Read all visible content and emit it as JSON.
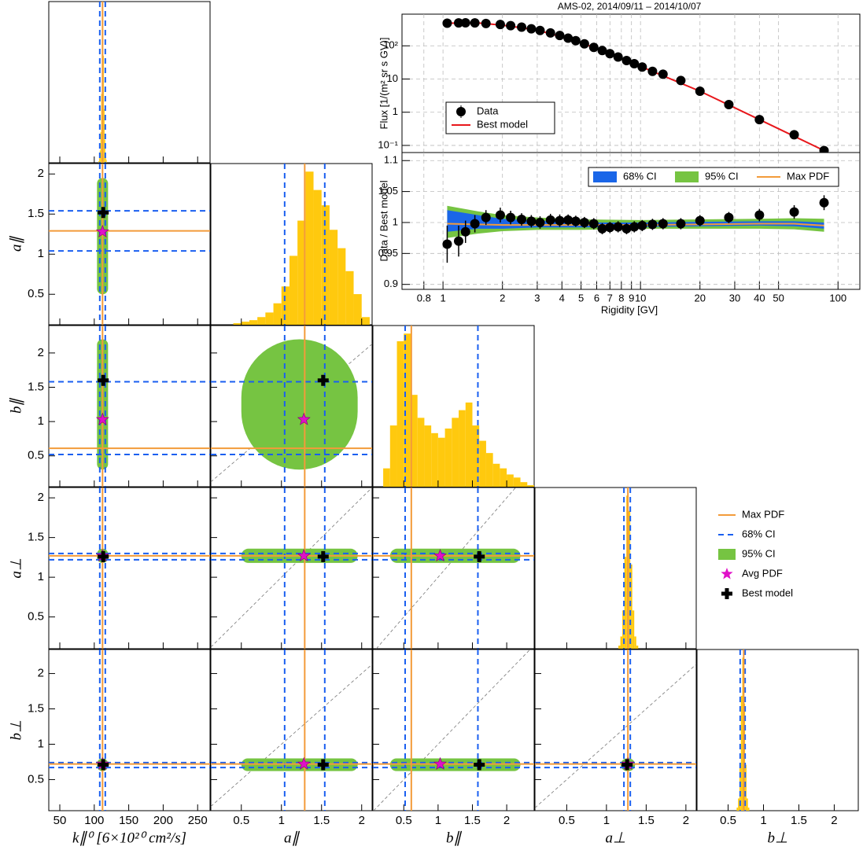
{
  "chart_data": [
    {
      "type": "scatter",
      "title": "AMS-02, 2014/09/11 – 2014/10/07",
      "ylabel": "Flux [1/(m² sr s GV)]",
      "log_x": true,
      "log_y": true,
      "grid": true,
      "xlim": [
        0.62,
        129
      ],
      "ylim": [
        0.061,
        900
      ],
      "yticks": [
        {
          "value": 0.1,
          "label": "10⁻¹"
        },
        1,
        10,
        {
          "value": 100,
          "label": "10²"
        }
      ],
      "x": [
        1.05,
        1.2,
        1.3,
        1.45,
        1.65,
        1.95,
        2.2,
        2.5,
        2.8,
        3.1,
        3.5,
        3.9,
        4.3,
        4.7,
        5.2,
        5.8,
        6.4,
        7,
        7.7,
        8.5,
        9.3,
        10.2,
        11.5,
        13,
        16,
        20,
        28,
        40,
        60,
        85
      ],
      "series": [
        {
          "name": "Data",
          "color": "#000000",
          "values": [
            480,
            490,
            495,
            490,
            470,
            440,
            405,
            365,
            325,
            290,
            245,
            205,
            170,
            143,
            115,
            90,
            72,
            58,
            46,
            36,
            29,
            23,
            17,
            14,
            9,
            4.3,
            1.7,
            0.6,
            0.21,
            0.07
          ]
        },
        {
          "name": "Best model",
          "color": "#e8171b",
          "x": [
            1.05,
            1.5,
            2,
            3,
            5,
            10,
            20,
            40,
            85
          ],
          "values": [
            480,
            490,
            420,
            300,
            125,
            24,
            4.3,
            0.6,
            0.07
          ]
        }
      ]
    },
    {
      "type": "errorbar",
      "xlabel": "Rigidity [GV]",
      "ylabel": "Data / Best model",
      "log_x": true,
      "grid": true,
      "color": "#000000",
      "xlim": [
        0.62,
        129
      ],
      "ylim": [
        0.892,
        1.113
      ],
      "xticks": [
        0.8,
        1,
        2,
        3,
        4,
        5,
        6,
        7,
        8,
        9,
        10,
        20,
        30,
        40,
        50,
        100
      ],
      "yticks": [
        0.9,
        0.95,
        1,
        1.05,
        1.1
      ],
      "x": [
        1.05,
        1.2,
        1.3,
        1.45,
        1.65,
        1.95,
        2.2,
        2.5,
        2.8,
        3.1,
        3.5,
        3.9,
        4.3,
        4.7,
        5.2,
        5.8,
        6.4,
        7,
        7.7,
        8.5,
        9.3,
        10.2,
        11.5,
        13,
        16,
        20,
        28,
        40,
        60,
        85
      ],
      "values": [
        0.965,
        0.97,
        0.985,
        0.998,
        1.008,
        1.012,
        1.008,
        1.005,
        1.002,
        1.0,
        1.004,
        1.003,
        1.004,
        1.002,
        1.0,
        0.998,
        0.99,
        0.992,
        0.993,
        0.99,
        0.993,
        0.995,
        0.997,
        0.998,
        0.998,
        1.003,
        1.008,
        1.012,
        1.017,
        1.032
      ],
      "errors": [
        0.03,
        0.025,
        0.018,
        0.014,
        0.012,
        0.012,
        0.011,
        0.01,
        0.01,
        0.01,
        0.01,
        0.01,
        0.009,
        0.009,
        0.009,
        0.009,
        0.009,
        0.009,
        0.009,
        0.009,
        0.009,
        0.009,
        0.009,
        0.009,
        0.009,
        0.009,
        0.009,
        0.01,
        0.011,
        0.012
      ],
      "series": [
        {
          "name": "68% CI",
          "color": "#1a66e8",
          "x": [
            1.05,
            1.5,
            2,
            3,
            5,
            10,
            20,
            40,
            60,
            85
          ],
          "upper": [
            1.02,
            1.012,
            1.006,
            1.003,
            1.0,
            1.0,
            1.001,
            1.002,
            1.002,
            1.0
          ],
          "lower": [
            0.985,
            0.99,
            0.99,
            0.992,
            0.992,
            0.993,
            0.994,
            0.995,
            0.994,
            0.99
          ]
        },
        {
          "name": "95% CI",
          "color": "#76c442",
          "x": [
            1.05,
            1.5,
            2,
            3,
            5,
            10,
            20,
            40,
            60,
            85
          ],
          "upper": [
            1.027,
            1.018,
            1.012,
            1.008,
            1.005,
            1.004,
            1.005,
            1.006,
            1.007,
            1.006
          ],
          "lower": [
            0.975,
            0.982,
            0.986,
            0.988,
            0.988,
            0.99,
            0.99,
            0.99,
            0.989,
            0.985
          ]
        },
        {
          "name": "Max PDF",
          "color": "#f39b3a",
          "x": [
            1.05,
            1.5,
            2,
            3,
            5,
            10,
            20,
            40,
            60,
            85
          ],
          "values": [
            0.998,
            0.997,
            0.996,
            0.996,
            0.996,
            0.996,
            0.997,
            0.998,
            0.998,
            0.995
          ]
        }
      ]
    },
    {
      "type": "corner",
      "hist_color": "#ffc90e",
      "legend": [
        {
          "name": "Max PDF",
          "color": "#f39b3a"
        },
        {
          "name": "68% CI",
          "color": "#1a5ff0"
        },
        {
          "name": "95% CI",
          "color": "#76c442"
        },
        {
          "name": "Avg PDF",
          "color": "#e010c8"
        },
        {
          "name": "Best model",
          "color": "#000000"
        }
      ],
      "params": [
        {
          "label": "k∥⁰ [6×10²⁰ cm²/s]",
          "lim": [
            34,
            268
          ],
          "ticks": [
            50,
            100,
            150,
            200,
            250
          ],
          "max_pdf": 112,
          "best": 113,
          "avg": 112,
          "ci68": [
            108,
            116
          ],
          "ci95": [
            104,
            120
          ],
          "bins": [
            106,
            107,
            108,
            109,
            110,
            111,
            112,
            113,
            114,
            115,
            116,
            117,
            118
          ],
          "counts": [
            1,
            3,
            8,
            20,
            45,
            80,
            100,
            70,
            35,
            15,
            6,
            2
          ]
        },
        {
          "label": "a∥",
          "lim": [
            0.12,
            2.13
          ],
          "ticks": [
            0.5,
            1,
            1.5,
            2
          ],
          "max_pdf": 1.29,
          "best": 1.52,
          "avg": 1.28,
          "ci68": [
            1.04,
            1.54
          ],
          "ci95": [
            0.5,
            1.95
          ],
          "bins": [
            0.3,
            0.4,
            0.5,
            0.6,
            0.7,
            0.8,
            0.9,
            1.0,
            1.1,
            1.2,
            1.3,
            1.4,
            1.5,
            1.6,
            1.7,
            1.8,
            1.9,
            2.0,
            2.1
          ],
          "counts": [
            0,
            1,
            2,
            3,
            5,
            8,
            14,
            25,
            45,
            68,
            100,
            88,
            78,
            62,
            50,
            35,
            20,
            5
          ]
        },
        {
          "label": "b∥",
          "lim": [
            0.05,
            2.4
          ],
          "ticks": [
            0.5,
            1,
            1.5,
            2
          ],
          "max_pdf": 0.61,
          "best": 1.6,
          "avg": 1.03,
          "ci68": [
            0.52,
            1.58
          ],
          "ci95": [
            0.3,
            2.2
          ],
          "bins": [
            0.2,
            0.3,
            0.4,
            0.5,
            0.6,
            0.7,
            0.8,
            0.9,
            1.0,
            1.1,
            1.2,
            1.3,
            1.4,
            1.5,
            1.6,
            1.7,
            1.8,
            1.9,
            2.0,
            2.1,
            2.2,
            2.3,
            2.4
          ],
          "counts": [
            12,
            40,
            95,
            100,
            60,
            45,
            40,
            35,
            32,
            38,
            45,
            50,
            55,
            40,
            30,
            22,
            15,
            12,
            8,
            6,
            3,
            1
          ]
        },
        {
          "label": "a⊥",
          "lim": [
            0.1,
            2.13
          ],
          "ticks": [
            0.5,
            1,
            1.5,
            2
          ],
          "max_pdf": 1.27,
          "best": 1.26,
          "avg": 1.27,
          "ci68": [
            1.22,
            1.3
          ],
          "ci95": [
            1.18,
            1.36
          ],
          "bins": [
            1.15,
            1.175,
            1.2,
            1.225,
            1.25,
            1.275,
            1.3,
            1.325,
            1.35,
            1.375,
            1.4
          ],
          "counts": [
            2,
            8,
            25,
            60,
            100,
            90,
            55,
            25,
            8,
            2
          ]
        },
        {
          "label": "b⊥",
          "lim": [
            0.06,
            2.34
          ],
          "ticks": [
            0.5,
            1,
            1.5,
            2
          ],
          "max_pdf": 0.72,
          "best": 0.71,
          "avg": 0.72,
          "ci68": [
            0.67,
            0.74
          ],
          "ci95": [
            0.62,
            0.8
          ],
          "bins": [
            0.62,
            0.64,
            0.66,
            0.68,
            0.7,
            0.72,
            0.74,
            0.76,
            0.78,
            0.8
          ],
          "counts": [
            2,
            8,
            30,
            75,
            100,
            70,
            30,
            8,
            2
          ]
        }
      ]
    }
  ]
}
